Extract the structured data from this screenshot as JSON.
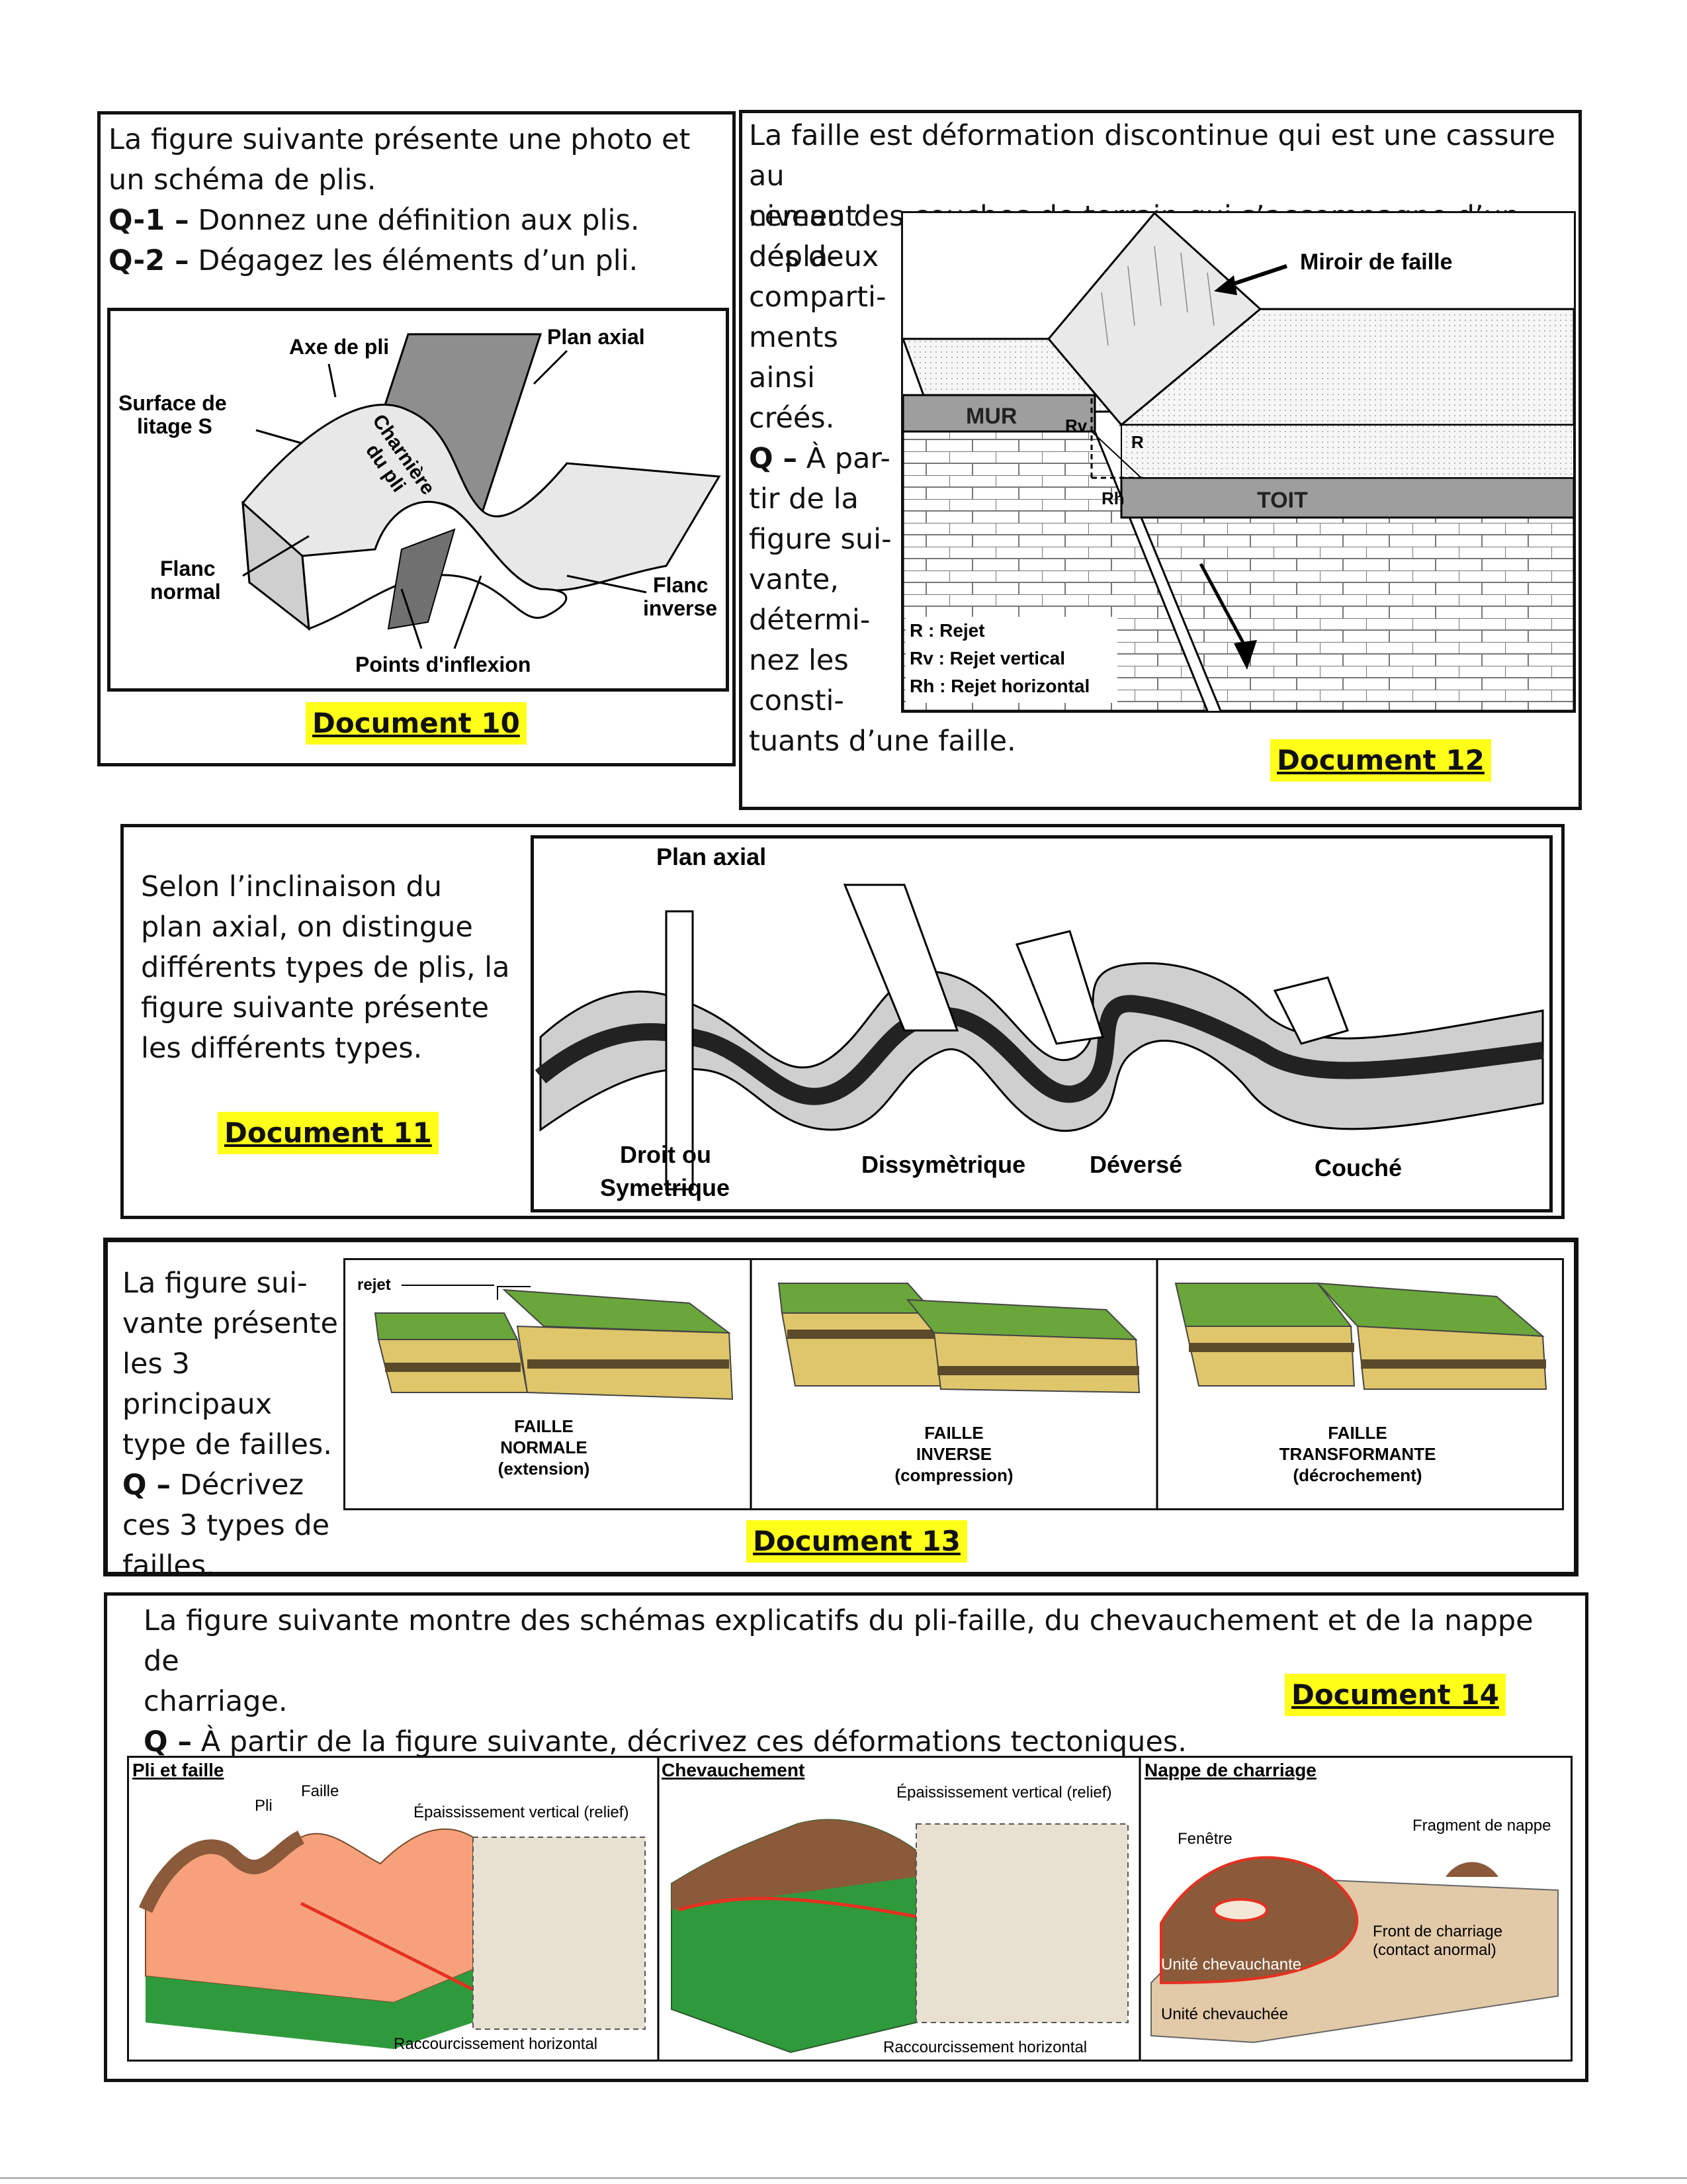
{
  "doc10": {
    "intro": "La figure suivante présente une photo et un schéma de plis.",
    "q1_label": "Q-1 –",
    "q1_text": "Donnez une définition aux plis.",
    "q2_label": "Q-2 –",
    "q2_text": "Dégagez les éléments d’un pli.",
    "labels": {
      "axe": "Axe de pli",
      "plan": "Plan axial",
      "surface": "Surface de",
      "surface2": "litage S",
      "charniere": "Charnière",
      "charniere2": "du pli",
      "flanc_normal": "Flanc",
      "flanc_normal2": "normal",
      "flanc_inverse": "Flanc",
      "flanc_inverse2": "inverse",
      "inflexion": "Points d'inflexion"
    },
    "doc_label": "Document 10"
  },
  "doc12": {
    "line1": "La faille est déformation discontinue qui est une cassure au",
    "line2": "niveau des couches de terrain qui s’accompagne d’un dépla-",
    "side_lines": [
      "cement",
      "des deux",
      "comparti-",
      "ments",
      "ainsi",
      "créés."
    ],
    "q_label": "Q –",
    "q_lines": [
      "À par-",
      "tir de la",
      "figure sui-",
      "vante,",
      "détermi-",
      "nez les",
      "consti-",
      "tuants d’une faille."
    ],
    "labels": {
      "miroir": "Miroir de faille",
      "mur": "MUR",
      "toit": "TOIT",
      "rv": "Rv",
      "r": "R",
      "rh": "Rh",
      "leg_r": "R : Rejet",
      "leg_rv": "Rv : Rejet vertical",
      "leg_rh": "Rh : Rejet horizontal"
    },
    "doc_label": "Document 12"
  },
  "doc11": {
    "lines": [
      "Selon l’inclinaison du",
      "plan axial, on distingue",
      "différents types de plis, la",
      "figure suivante présente",
      "les différents types."
    ],
    "doc_label": "Document 11",
    "labels": {
      "plan": "Plan axial",
      "droit": "Droit ou",
      "droit2": "Symetrique",
      "dissym": "Dissymètrique",
      "deverse": "Déversé",
      "couche": "Couché"
    }
  },
  "doc13": {
    "lines": [
      "La figure sui-",
      "vante présente",
      "les 3 principaux",
      "type de failles."
    ],
    "q_label": "Q –",
    "q_lines": [
      "Décrivez",
      "ces 3 types de",
      "failles."
    ],
    "doc_label": "Document 13",
    "rejet": "rejet",
    "panels": [
      {
        "title1": "FAILLE",
        "title2": "NORMALE",
        "sub": "(extension)"
      },
      {
        "title1": "FAILLE",
        "title2": "INVERSE",
        "sub": "(compression)"
      },
      {
        "title1": "FAILLE",
        "title2": "TRANSFORMANTE",
        "sub": "(décrochement)"
      }
    ]
  },
  "doc14": {
    "line1": "La figure suivante montre des schémas explicatifs du pli-faille, du chevauchement et de la nappe de",
    "line2": "charriage.",
    "q_label": "Q –",
    "q_text": "À partir de la figure suivante, décrivez ces déformations tectoniques.",
    "doc_label": "Document 14",
    "panels": {
      "p1": {
        "title": "Pli et faille",
        "pli": "Pli",
        "faille": "Faille",
        "epais": "Épaississement vertical (relief)",
        "racc": "Raccourcissement horizontal"
      },
      "p2": {
        "title": "Chevauchement",
        "epais": "Épaississement vertical (relief)",
        "racc": "Raccourcissement horizontal"
      },
      "p3": {
        "title": "Nappe de charriage",
        "fenetre": "Fenêtre",
        "fragment": "Fragment de nappe",
        "front1": "Front de charriage",
        "front2": "(contact anormal)",
        "unite1": "Unité chevauchante",
        "unite2": "Unité chevauchée"
      }
    }
  },
  "colors": {
    "highlight": "#ffff19",
    "border": "#111111"
  }
}
